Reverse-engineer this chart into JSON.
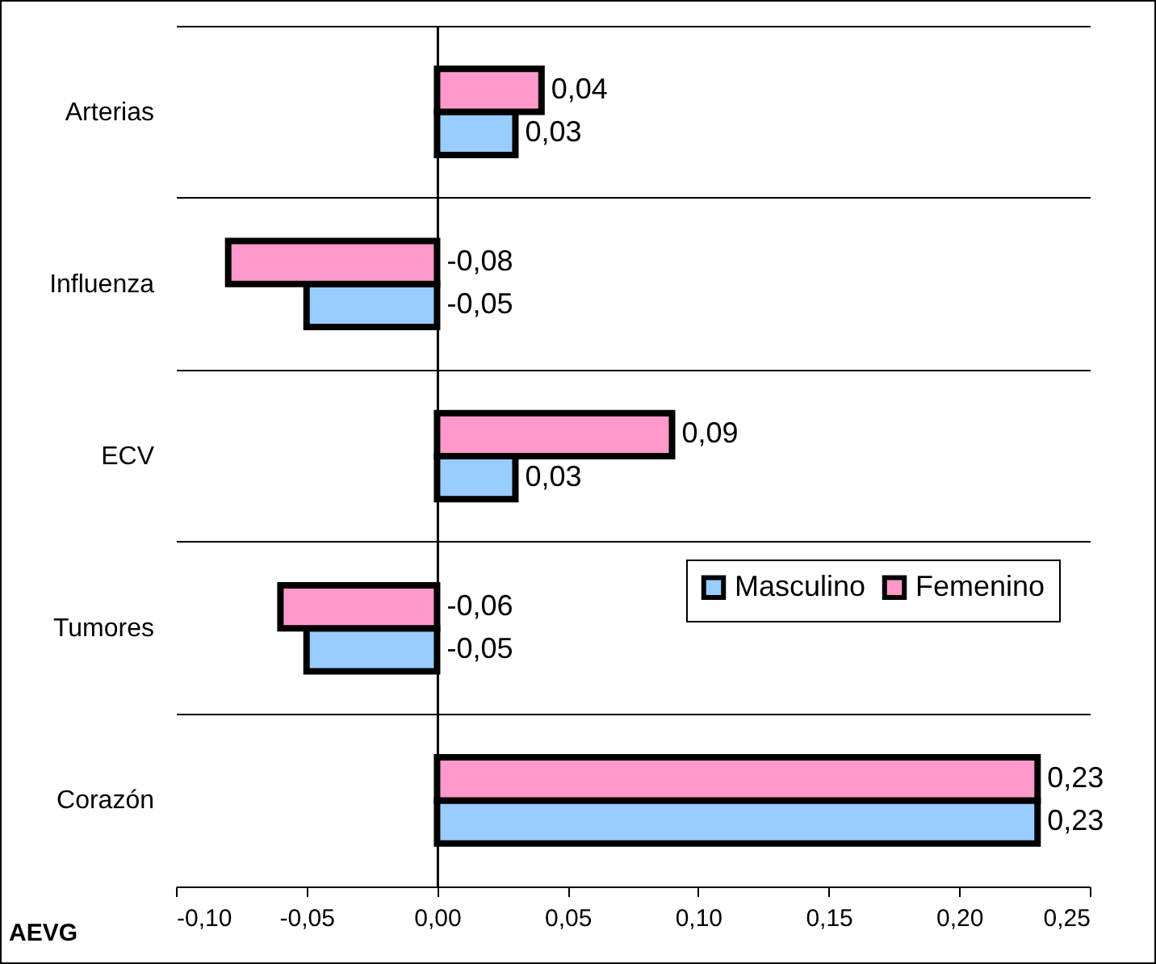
{
  "chart_data": {
    "type": "bar",
    "orientation": "horizontal",
    "xlabel": "AEVG",
    "categories": [
      "Arterias",
      "Influenza",
      "ECV",
      "Tumores",
      "Corazón"
    ],
    "series": [
      {
        "name": "Masculino",
        "color": "#99ccff",
        "values": [
          0.03,
          -0.05,
          0.03,
          -0.05,
          0.23
        ],
        "value_labels": [
          "0,03",
          "-0,05",
          "0,03",
          "-0,05",
          "0,23"
        ]
      },
      {
        "name": "Femenino",
        "color": "#ff99cc",
        "values": [
          0.04,
          -0.08,
          0.09,
          -0.06,
          0.23
        ],
        "value_labels": [
          "0,04",
          "-0,08",
          "0,09",
          "-0,06",
          "0,23"
        ]
      }
    ],
    "xlim": [
      -0.1,
      0.25
    ],
    "xticks": [
      {
        "value": -0.1,
        "label": "-0,10"
      },
      {
        "value": -0.05,
        "label": "-0,05"
      },
      {
        "value": 0,
        "label": "0,00"
      },
      {
        "value": 0.05,
        "label": "0,05"
      },
      {
        "value": 0.1,
        "label": "0,10"
      },
      {
        "value": 0.15,
        "label": "0,15"
      },
      {
        "value": 0.2,
        "label": "0,20"
      },
      {
        "value": 0.25,
        "label": "0,25"
      }
    ],
    "grid": "y",
    "legend": "right"
  }
}
